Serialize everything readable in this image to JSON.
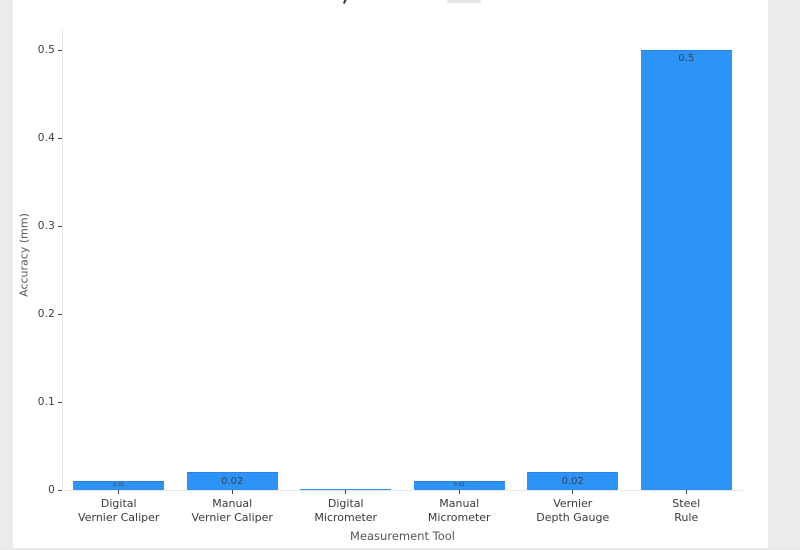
{
  "window": {
    "background": "#ffffff",
    "left_gutter_color": "#ebebeb",
    "right_gutter_color": "#ececea",
    "title_clipped_note": "chart title is cut off at the top edge of the screenshot"
  },
  "chart_data": {
    "type": "bar",
    "title": "",
    "xlabel": "Measurement Tool",
    "ylabel": "Accuracy (mm)",
    "categories": [
      "Digital Vernier Caliper",
      "Manual Vernier Caliper",
      "Digital Micrometer",
      "Manual Micrometer",
      "Vernier Depth Gauge",
      "Steel Rule"
    ],
    "category_lines": [
      [
        "Digital",
        "Vernier Caliper"
      ],
      [
        "Manual",
        "Vernier Caliper"
      ],
      [
        "Digital",
        "Micrometer"
      ],
      [
        "Manual",
        "Micrometer"
      ],
      [
        "Vernier",
        "Depth Gauge"
      ],
      [
        "Steel",
        "Rule"
      ]
    ],
    "values": [
      0.01,
      0.02,
      0.001,
      0.01,
      0.02,
      0.5
    ],
    "bar_labels": [
      "0.01",
      "0.02",
      "",
      "0.01",
      "0.02",
      "0.5"
    ],
    "ytick_values": [
      0,
      0.1,
      0.2,
      0.3,
      0.4,
      0.5
    ],
    "ytick_labels": [
      "0",
      "0.1",
      "0.2",
      "0.3",
      "0.4",
      "0.5"
    ],
    "ylim": [
      0,
      0.52
    ],
    "grid": false,
    "legend": null,
    "bar_color": "#2e93f7",
    "bar_label_color": "#344251",
    "tick_text_color": "#3a3a3a",
    "axis_title_color": "#565656",
    "axis_line_color": "#e8e8e8"
  }
}
